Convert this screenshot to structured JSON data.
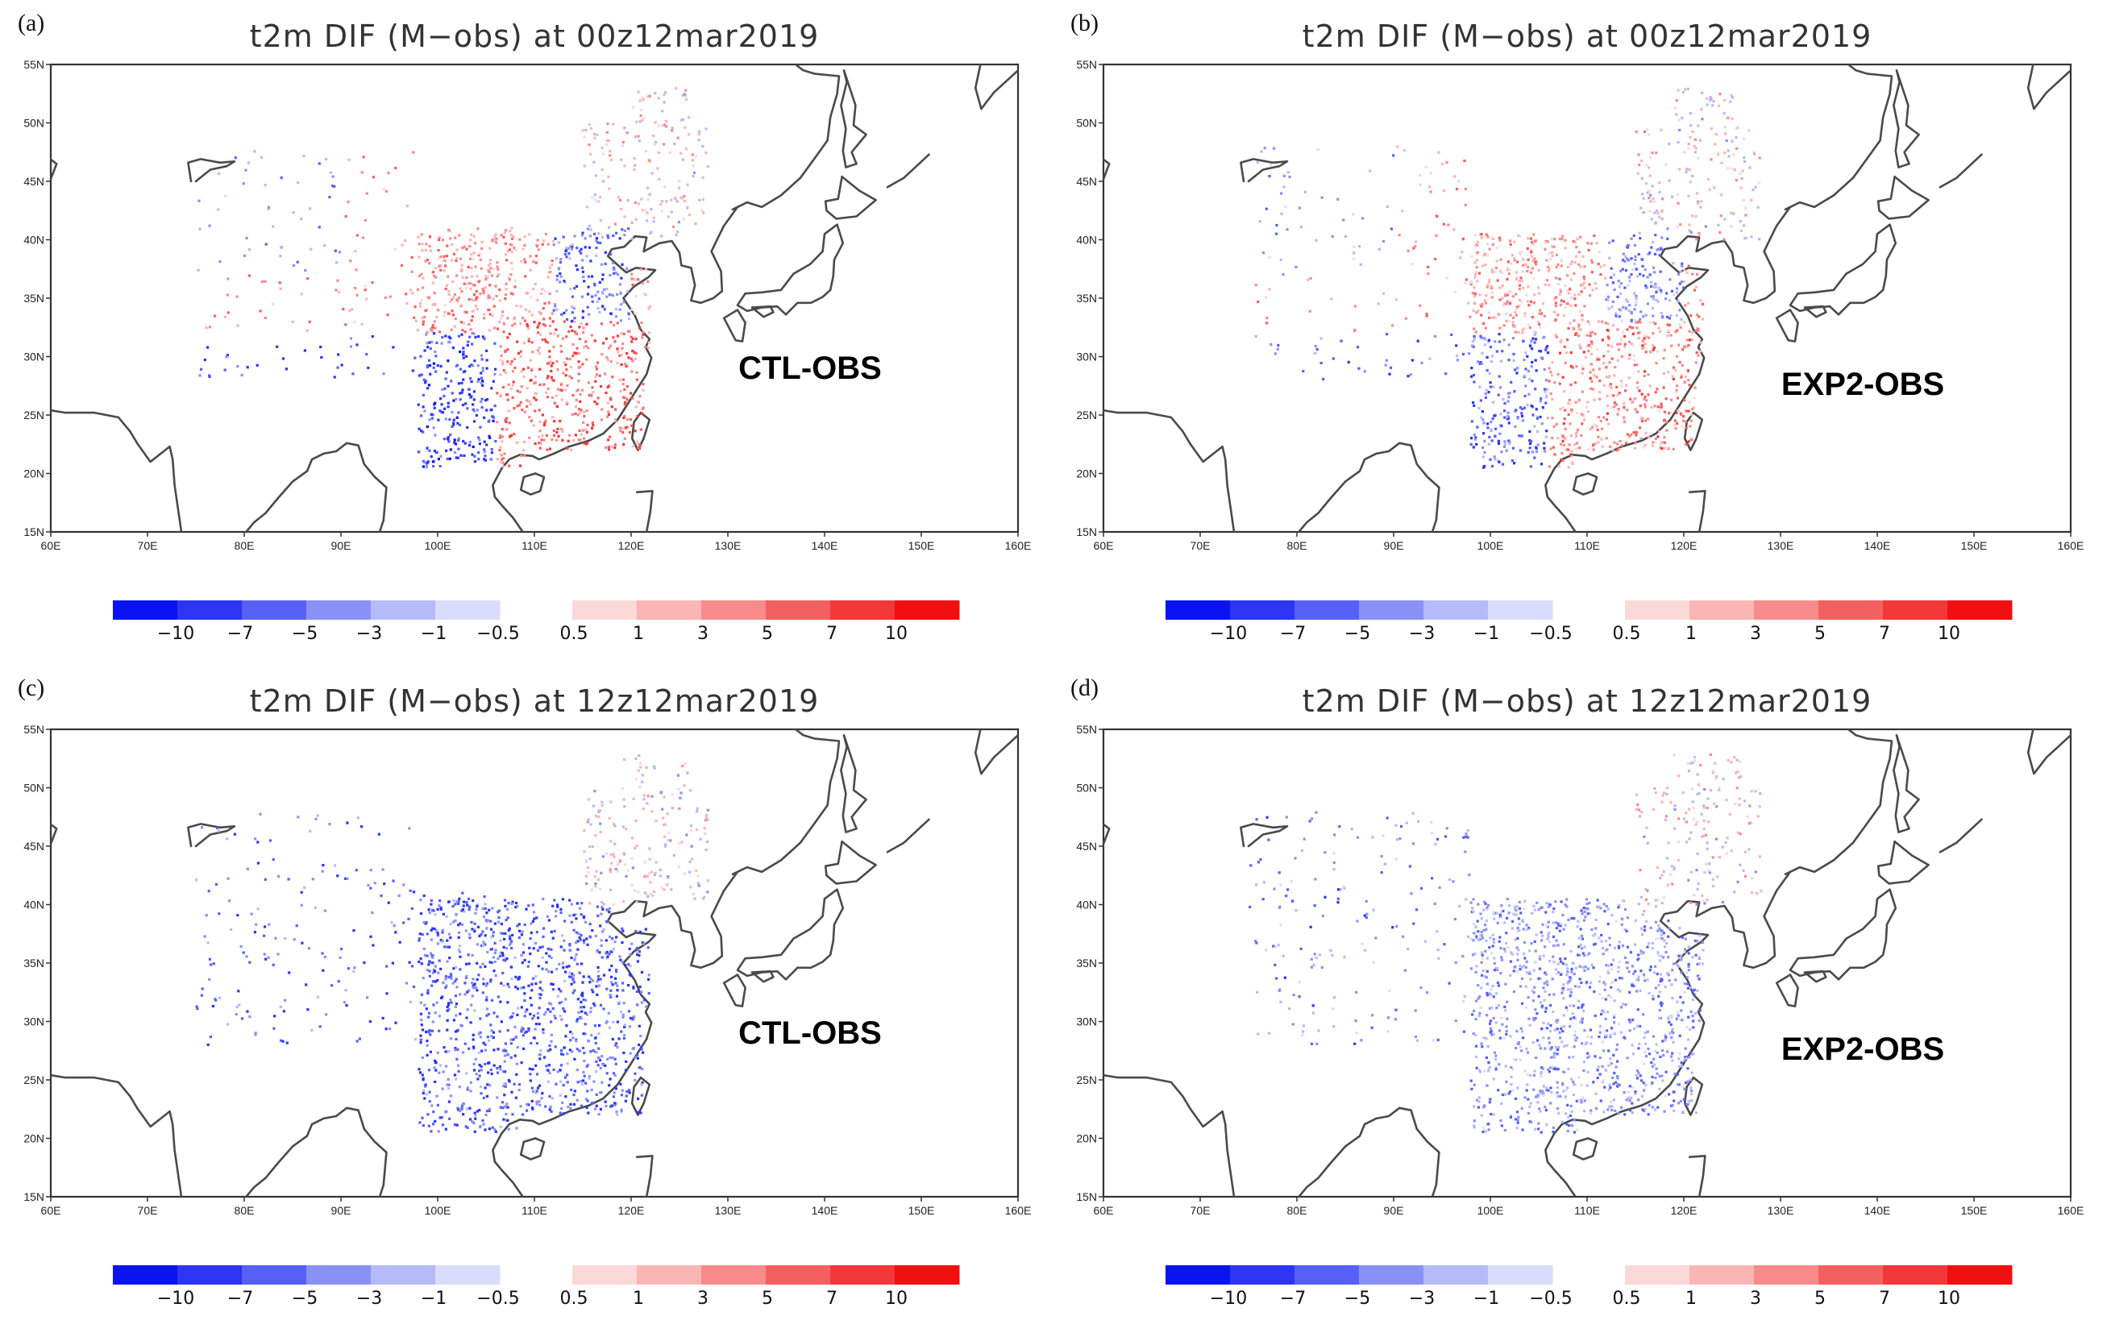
{
  "figure": {
    "panels": [
      {
        "id": "a",
        "label": "(a)",
        "title": "t2m DIF (M−obs) at 00z12mar2019",
        "experiment": "CTL-OBS",
        "time": "00z",
        "experiment_key": "CTL",
        "seed": 11
      },
      {
        "id": "b",
        "label": "(b)",
        "title": "t2m DIF (M−obs) at 00z12mar2019",
        "experiment": "EXP2-OBS",
        "time": "00z",
        "experiment_key": "EXP2",
        "seed": 23
      },
      {
        "id": "c",
        "label": "(c)",
        "title": "t2m DIF (M−obs) at 12z12mar2019",
        "experiment": "CTL-OBS",
        "time": "12z",
        "experiment_key": "CTL",
        "seed": 37
      },
      {
        "id": "d",
        "label": "(d)",
        "title": "t2m DIF (M−obs) at 12z12mar2019",
        "experiment": "EXP2-OBS",
        "time": "12z",
        "experiment_key": "EXP2",
        "seed": 51
      }
    ],
    "map": {
      "lon_range": [
        60,
        160
      ],
      "lat_range": [
        15,
        55
      ],
      "lon_ticks": [
        "60E",
        "70E",
        "80E",
        "90E",
        "100E",
        "110E",
        "120E",
        "130E",
        "140E",
        "150E",
        "160E"
      ],
      "lat_ticks": [
        "15N",
        "20N",
        "25N",
        "30N",
        "35N",
        "40N",
        "45N",
        "50N",
        "55N"
      ]
    },
    "colorbar": {
      "blue_colors": [
        "#0a14f0",
        "#2b35f2",
        "#5660f4",
        "#8a91f6",
        "#b5baf9",
        "#dadcfb"
      ],
      "red_colors": [
        "#fcd9d9",
        "#fab5b5",
        "#f78b8b",
        "#f46060",
        "#f23838",
        "#f01010"
      ],
      "blue_labels": [
        "−10",
        "−7",
        "−5",
        "−3",
        "−1",
        "−0.5"
      ],
      "red_labels": [
        "0.5",
        "1",
        "3",
        "5",
        "7",
        "10"
      ]
    }
  }
}
